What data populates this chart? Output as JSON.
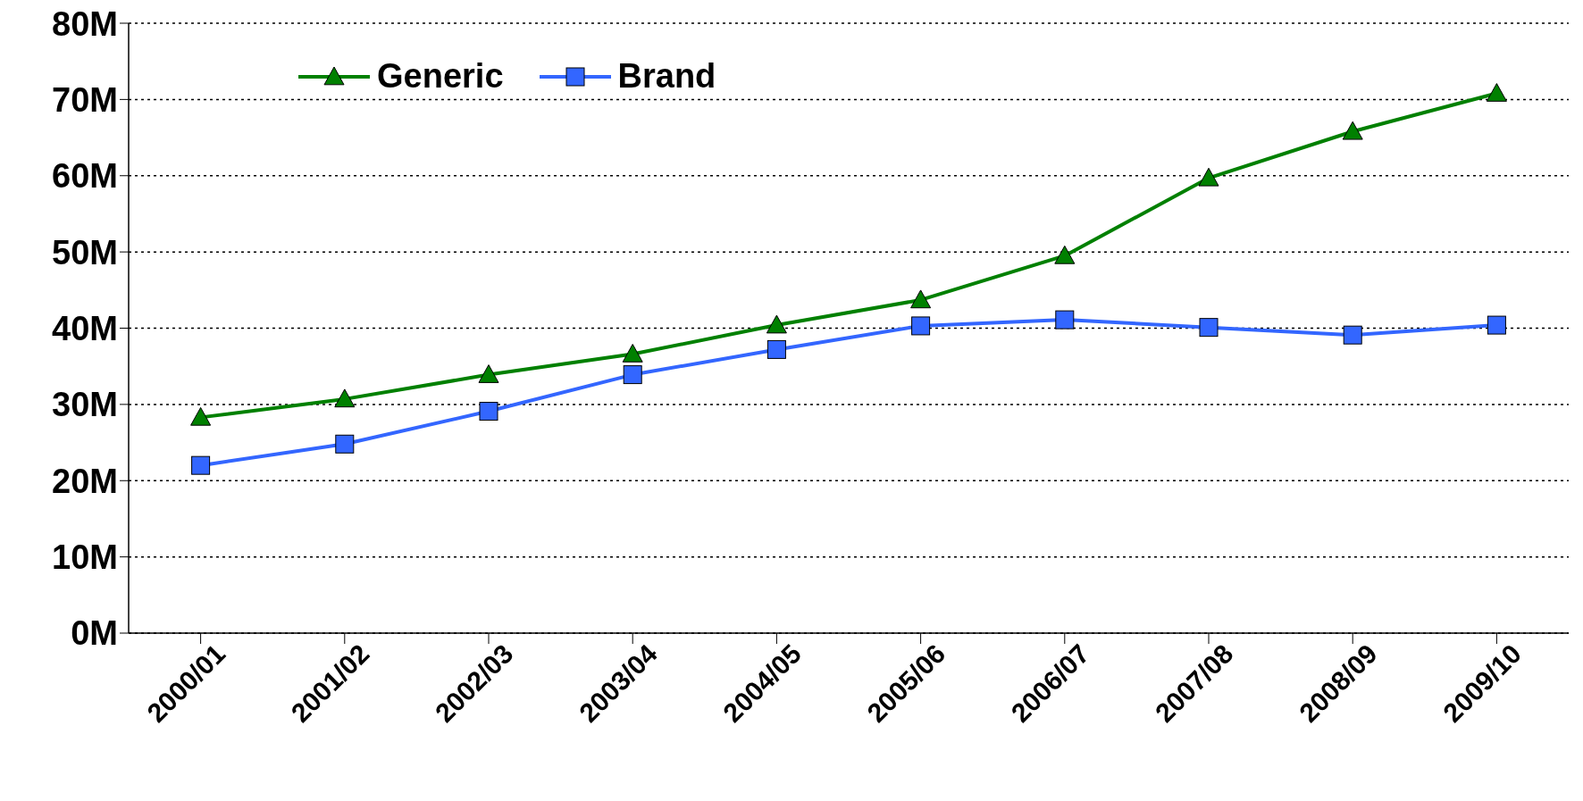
{
  "chart_data": {
    "type": "line",
    "categories": [
      "2000/01",
      "2001/02",
      "2002/03",
      "2003/04",
      "2004/05",
      "2005/06",
      "2006/07",
      "2007/08",
      "2008/09",
      "2009/10"
    ],
    "series": [
      {
        "name": "Generic",
        "color": "#008000",
        "marker": "triangle",
        "values": [
          28.3,
          30.7,
          33.9,
          36.6,
          40.4,
          43.7,
          49.5,
          59.7,
          65.8,
          70.8
        ]
      },
      {
        "name": "Brand",
        "color": "#3366ff",
        "marker": "square",
        "values": [
          22.0,
          24.8,
          29.1,
          33.9,
          37.2,
          40.3,
          41.1,
          40.1,
          39.1,
          40.4
        ]
      }
    ],
    "ylim": [
      0,
      80
    ],
    "yticks": [
      {
        "value": 0,
        "label": "0M"
      },
      {
        "value": 10,
        "label": "10M"
      },
      {
        "value": 20,
        "label": "20M"
      },
      {
        "value": 30,
        "label": "30M"
      },
      {
        "value": 40,
        "label": "40M"
      },
      {
        "value": 50,
        "label": "50M"
      },
      {
        "value": 60,
        "label": "60M"
      },
      {
        "value": 70,
        "label": "70M"
      },
      {
        "value": 80,
        "label": "80M"
      }
    ],
    "grid": "y",
    "legend": "top left",
    "line_style": "solid"
  }
}
